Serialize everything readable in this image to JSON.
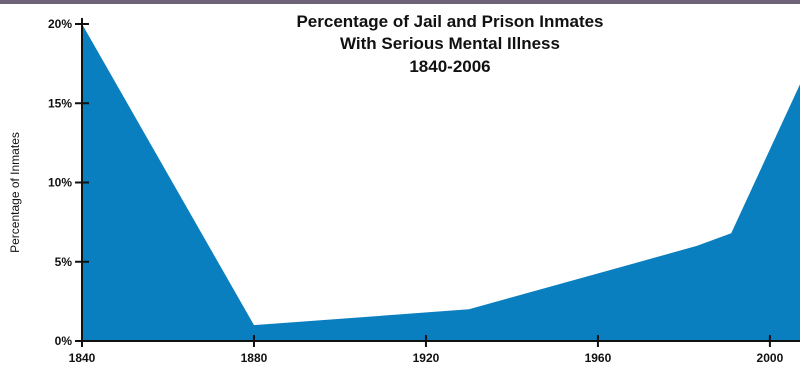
{
  "chart_data": {
    "type": "area",
    "title_lines": [
      "Percentage of Jail and Prison Inmates",
      "With Serious Mental Illness",
      "1840-2006"
    ],
    "xlabel": "",
    "ylabel": "Percentage of Inmates",
    "x_ticks": [
      "1840",
      "1880",
      "1920",
      "1960",
      "2000"
    ],
    "y_ticks": [
      "0%",
      "5%",
      "10%",
      "15%",
      "20%"
    ],
    "xlim": [
      1840,
      2007
    ],
    "ylim": [
      0,
      20
    ],
    "grid": false,
    "legend": "none",
    "fill_color": "#0a7fc0",
    "axis_color": "#111111",
    "x": [
      1840,
      1880,
      1930,
      1983,
      1991,
      2007
    ],
    "y": [
      20,
      1.0,
      2.0,
      6.0,
      6.8,
      16.2
    ]
  }
}
